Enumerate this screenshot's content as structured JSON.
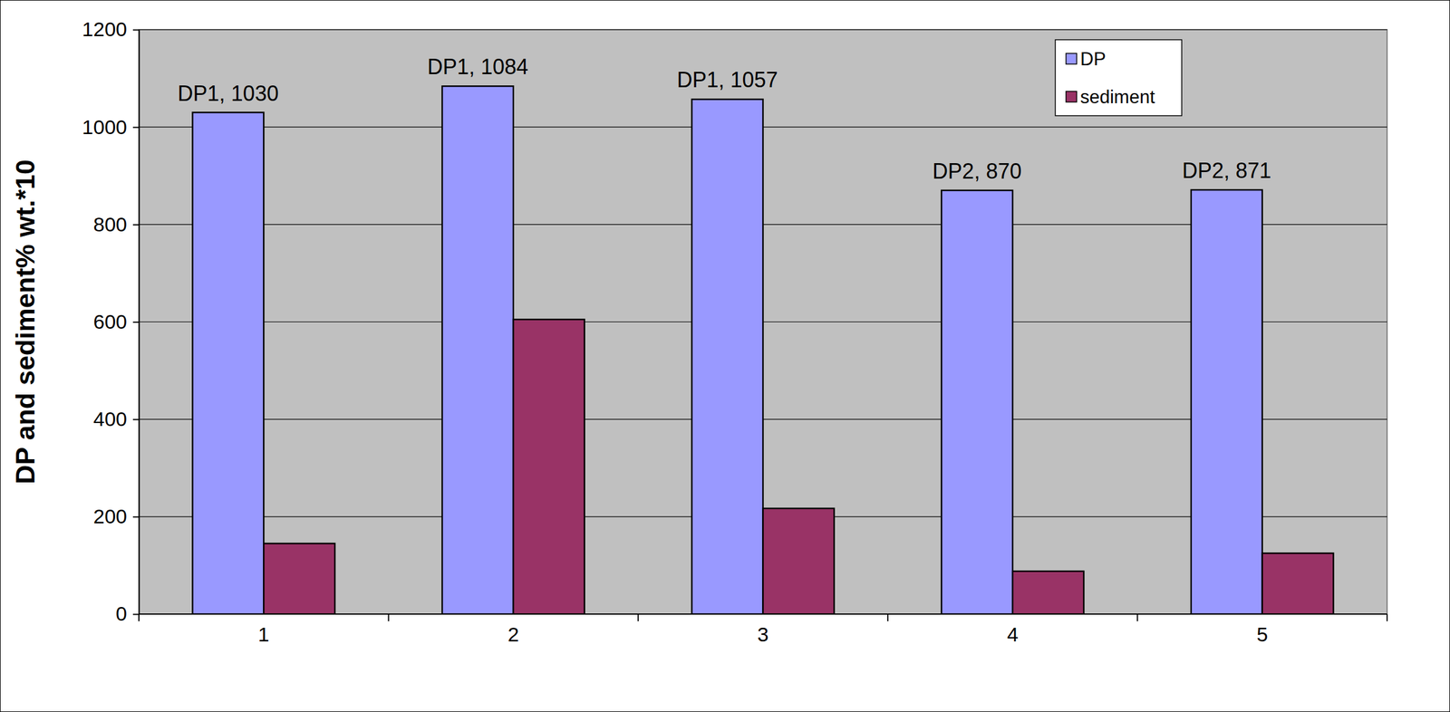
{
  "chart_data": {
    "type": "bar",
    "ylabel": "DP and sediment% wt.*10",
    "categories": [
      "1",
      "2",
      "3",
      "4",
      "5"
    ],
    "series": [
      {
        "name": "DP",
        "color": "#9999ff",
        "values": [
          1030,
          1084,
          1057,
          870,
          871
        ],
        "value_labels": [
          "DP1, 1030",
          "DP1, 1084",
          "DP1, 1057",
          "DP2, 870",
          "DP2, 871"
        ],
        "data_labels": true
      },
      {
        "name": "sediment",
        "color": "#993366",
        "values": [
          145,
          605,
          217,
          88,
          125
        ]
      }
    ],
    "ylim": [
      0,
      1200
    ],
    "yticks": [
      0,
      200,
      400,
      600,
      800,
      1000,
      1200
    ],
    "grid": true,
    "legend": "upper right"
  }
}
